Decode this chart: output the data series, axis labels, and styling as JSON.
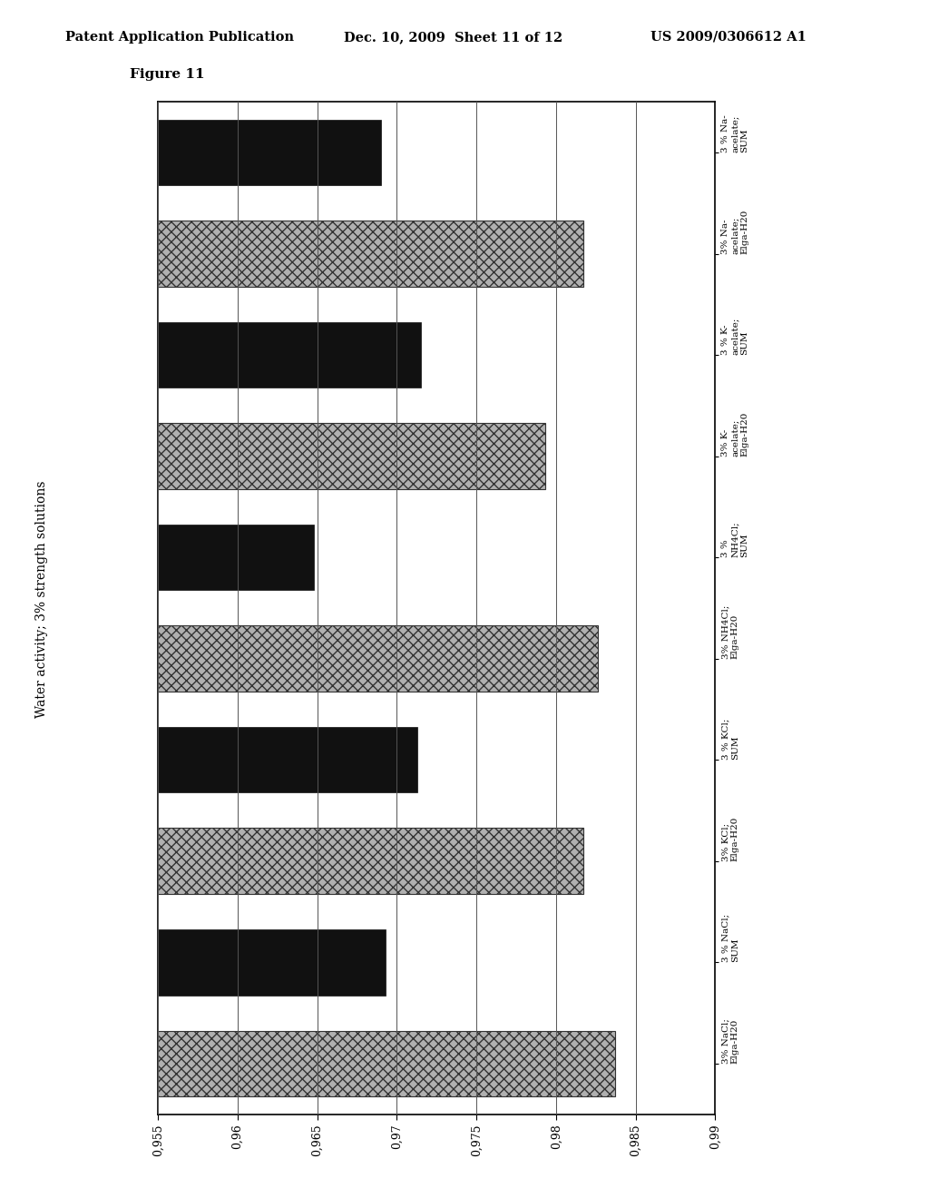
{
  "header_left": "Patent Application Publication",
  "header_mid": "Dec. 10, 2009  Sheet 11 of 12",
  "header_right": "US 2009/0306612 A1",
  "figure_label": "Figure 11",
  "ylabel": "Water activity; 3% strength solutions",
  "xlim_left": 0.99,
  "xlim_right": 0.955,
  "xticks": [
    0.99,
    0.985,
    0.98,
    0.975,
    0.97,
    0.965,
    0.96,
    0.955
  ],
  "xtick_labels": [
    "0,99",
    "0,985",
    "0,98",
    "0,975",
    "0,97",
    "0,965",
    "0,96",
    "0,955"
  ],
  "categories_bottom_to_top": [
    "3% NaCl;\nElga-H20",
    "3 % NaCl;\nSUM",
    "3% KCl;\nElga-H20",
    "3 % KCl;\nSUM",
    "3% NH4Cl;\nElga-H20",
    "3 %\nNH4Cl;\nSUM",
    "3% K-\nacelate;\nElga-H20",
    "3 % K-\nacelate;\nSUM",
    "3% Na-\nacelate;\nElga-H20",
    "3 % Na-\nacelate;\nSUM"
  ],
  "values": [
    0.9837,
    0.9693,
    0.9817,
    0.9713,
    0.9826,
    0.9648,
    0.9793,
    0.9715,
    0.9817,
    0.969
  ],
  "is_gray": [
    true,
    false,
    true,
    false,
    true,
    false,
    true,
    false,
    true,
    false
  ],
  "background_color": "#ffffff"
}
